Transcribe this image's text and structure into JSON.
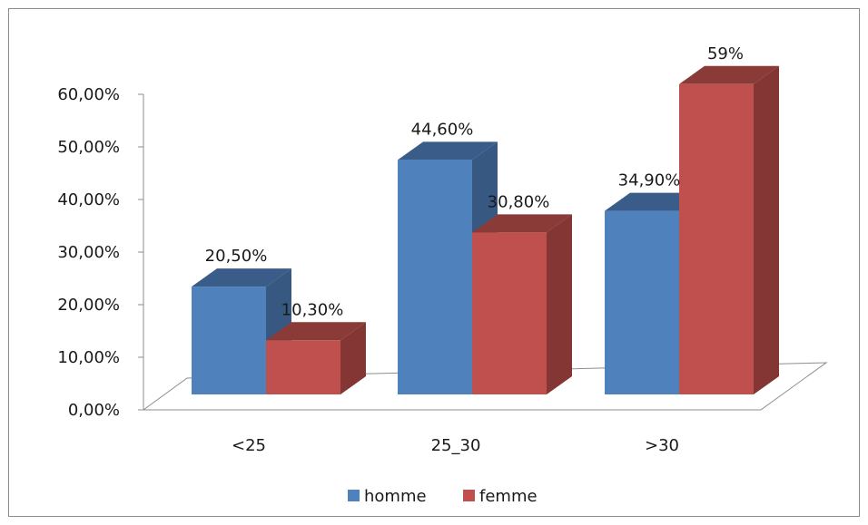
{
  "chart_data": {
    "type": "bar",
    "categories": [
      "<25",
      "25_30",
      ">30"
    ],
    "series": [
      {
        "name": "homme",
        "values": [
          20.5,
          44.6,
          34.9
        ],
        "labels": [
          "20,50%",
          "44,60%",
          "34,90%"
        ],
        "color": "#4f81bd"
      },
      {
        "name": "femme",
        "values": [
          10.3,
          30.8,
          59
        ],
        "labels": [
          "10,30%",
          "30,80%",
          "59%"
        ],
        "color": "#c0504d"
      }
    ],
    "y_ticks": [
      "0,00%",
      "10,00%",
      "20,00%",
      "30,00%",
      "40,00%",
      "50,00%",
      "60,00%"
    ],
    "ylim": [
      0,
      60
    ],
    "grid": false,
    "three_d": true,
    "legend_position": "bottom"
  }
}
